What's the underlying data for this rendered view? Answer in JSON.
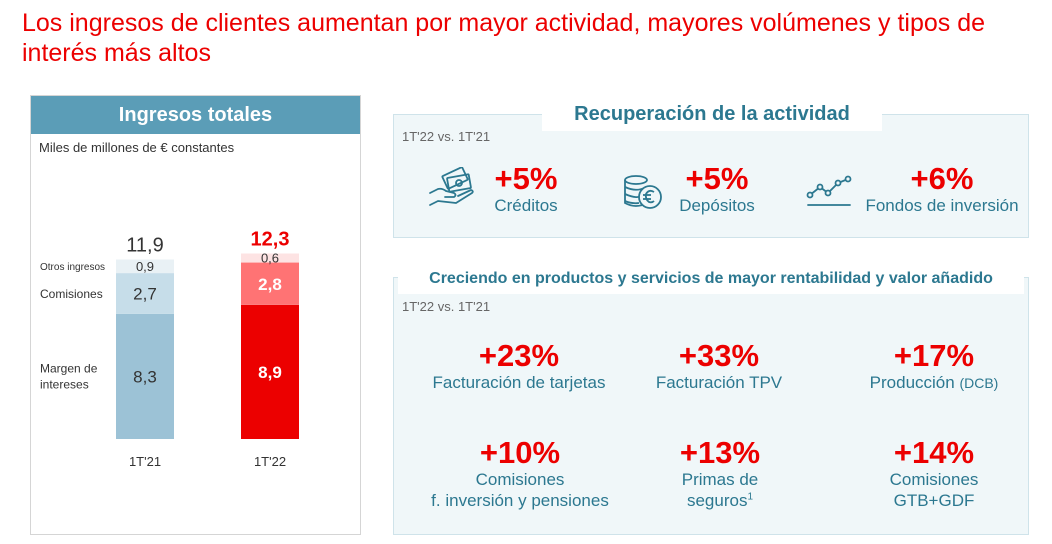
{
  "title": "Los ingresos de clientes aumentan por mayor actividad, mayores volúmenes y tipos de interés más altos",
  "chart_panel": {
    "header": "Ingresos totales",
    "unit": "Miles de millones de € constantes"
  },
  "chart_data": {
    "type": "bar",
    "stacked": true,
    "categories": [
      "1T'21",
      "1T'22"
    ],
    "series": [
      {
        "name": "Margen de intereses",
        "values": [
          8.3,
          8.9
        ]
      },
      {
        "name": "Comisiones",
        "values": [
          2.7,
          2.8
        ]
      },
      {
        "name": "Otros ingresos",
        "values": [
          0.9,
          0.6
        ]
      }
    ],
    "series_labels": [
      "Margen de\nintereses",
      "Comisiones",
      "Otros ingresos"
    ],
    "value_labels": [
      [
        "8,3",
        "2,7",
        "0,9"
      ],
      [
        "8,9",
        "2,8",
        "0,6"
      ]
    ],
    "totals": [
      11.9,
      12.3
    ],
    "total_labels": [
      "11,9",
      "12,3"
    ],
    "colors": {
      "1T'21": [
        "#9cc2d6",
        "#c6dde9",
        "#e9f1f5"
      ],
      "1T'22": [
        "#ec0000",
        "#ff7374",
        "#fde3e3"
      ]
    },
    "grid": false,
    "legend": "left"
  },
  "activity": {
    "title": "Recuperación de la actividad",
    "period": "1T'22 vs. 1T'21",
    "items": [
      {
        "value": "+5%",
        "label": "Créditos",
        "icon": "hand-money-icon"
      },
      {
        "value": "+5%",
        "label": "Depósitos",
        "icon": "coins-euro-icon"
      },
      {
        "value": "+6%",
        "label": "Fondos de inversión",
        "icon": "line-chart-icon"
      }
    ]
  },
  "products": {
    "title": "Creciendo en productos y servicios de mayor rentabilidad y valor añadido",
    "period": "1T'22 vs. 1T'21",
    "items": [
      {
        "value": "+23%",
        "label": "Facturación de tarjetas"
      },
      {
        "value": "+33%",
        "label": "Facturación TPV"
      },
      {
        "value": "+17%",
        "label": "Producción",
        "label_suffix": "(DCB)"
      },
      {
        "value": "+10%",
        "label": "Comisiones",
        "label2": "f. inversión y pensiones"
      },
      {
        "value": "+13%",
        "label": "Primas de",
        "label2": "seguros",
        "footnote": "1"
      },
      {
        "value": "+14%",
        "label": "Comisiones",
        "label2": "GTB+GDF"
      }
    ]
  },
  "accent_color": "#ec0000",
  "teal_color": "#2c7890"
}
